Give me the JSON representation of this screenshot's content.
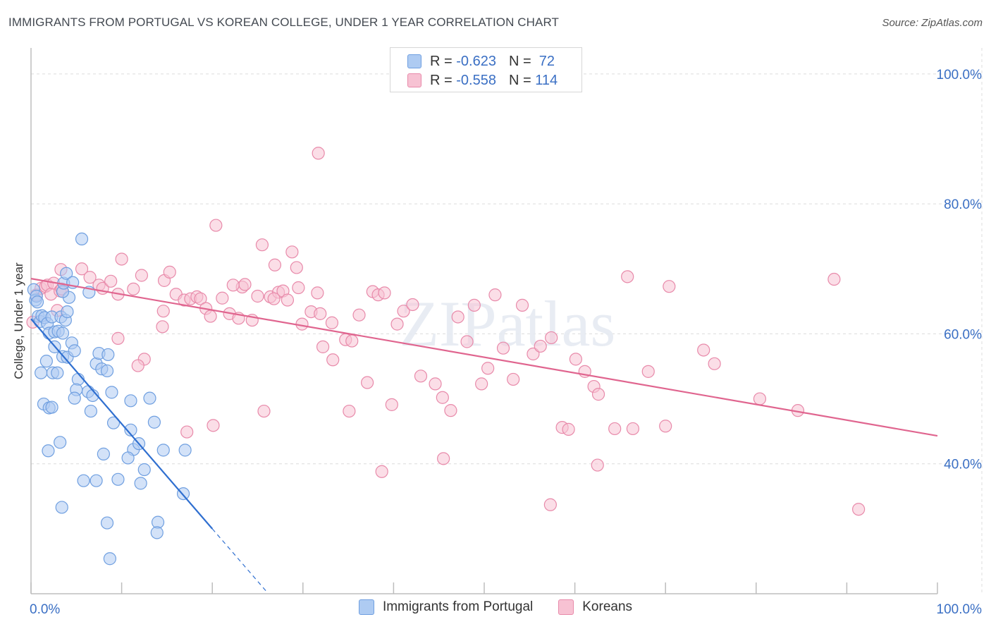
{
  "title": "IMMIGRANTS FROM PORTUGAL VS KOREAN COLLEGE, UNDER 1 YEAR CORRELATION CHART",
  "source": "Source: ZipAtlas.com",
  "watermark": "ZIPatlas",
  "legend": {
    "r_label": "R =",
    "n_label": "N =",
    "series1": {
      "r": "-0.623",
      "n": "72"
    },
    "series2": {
      "r": "-0.558",
      "n": "114"
    }
  },
  "colors": {
    "blue_fill": "#aecbf2",
    "blue_stroke": "#6f9fe0",
    "blue_line": "#2f6fd0",
    "pink_fill": "#f7c2d3",
    "pink_stroke": "#e88aaa",
    "pink_line": "#e0658f",
    "axis_text": "#3a6fc4"
  },
  "chart_data": {
    "type": "scatter",
    "title": "IMMIGRANTS FROM PORTUGAL VS KOREAN COLLEGE, UNDER 1 YEAR CORRELATION CHART",
    "xlabel": "",
    "ylabel": "College, Under 1 year",
    "xlim": [
      0,
      100
    ],
    "ylim": [
      20,
      104
    ],
    "x_tick_labels": [
      "0.0%",
      "100.0%"
    ],
    "y_ticks": [
      40,
      60,
      80,
      100
    ],
    "y_tick_labels": [
      "40.0%",
      "60.0%",
      "80.0%",
      "100.0%"
    ],
    "series": [
      {
        "name": "Immigrants from Portugal",
        "r": -0.623,
        "n": 72,
        "trend": {
          "x0": 0,
          "y0": 62.3,
          "x1": 20,
          "y1": 30.0,
          "dash_to_x": 26
        },
        "points": [
          [
            0.3,
            66.8
          ],
          [
            0.5,
            65.2
          ],
          [
            0.6,
            65.8
          ],
          [
            0.7,
            64.9
          ],
          [
            0.8,
            62.7
          ],
          [
            1.0,
            61.9
          ],
          [
            1.2,
            62.8
          ],
          [
            1.5,
            62.5
          ],
          [
            1.8,
            61.6
          ],
          [
            2.0,
            60.1
          ],
          [
            2.3,
            62.6
          ],
          [
            2.6,
            60.3
          ],
          [
            3.0,
            60.4
          ],
          [
            3.3,
            62.6
          ],
          [
            3.5,
            60.1
          ],
          [
            3.8,
            62.1
          ],
          [
            4.0,
            63.4
          ],
          [
            4.2,
            65.6
          ],
          [
            4.5,
            58.6
          ],
          [
            3.5,
            66.5
          ],
          [
            3.6,
            67.8
          ],
          [
            3.9,
            69.3
          ],
          [
            4.6,
            67.9
          ],
          [
            2.6,
            58.0
          ],
          [
            1.7,
            55.8
          ],
          [
            1.1,
            54.0
          ],
          [
            2.4,
            54.0
          ],
          [
            2.9,
            54.0
          ],
          [
            3.5,
            56.5
          ],
          [
            4.0,
            56.4
          ],
          [
            4.8,
            57.4
          ],
          [
            5.2,
            53.0
          ],
          [
            5.0,
            51.4
          ],
          [
            6.3,
            51.1
          ],
          [
            6.8,
            50.5
          ],
          [
            7.2,
            55.4
          ],
          [
            7.5,
            57.0
          ],
          [
            7.8,
            54.6
          ],
          [
            8.4,
            54.3
          ],
          [
            8.5,
            56.8
          ],
          [
            8.9,
            51.0
          ],
          [
            11.0,
            49.7
          ],
          [
            13.1,
            50.1
          ],
          [
            1.4,
            49.2
          ],
          [
            2.0,
            48.6
          ],
          [
            2.3,
            48.7
          ],
          [
            4.8,
            50.1
          ],
          [
            9.1,
            46.3
          ],
          [
            11.0,
            45.2
          ],
          [
            13.6,
            46.4
          ],
          [
            11.3,
            42.2
          ],
          [
            11.9,
            43.1
          ],
          [
            14.6,
            42.1
          ],
          [
            1.9,
            42.0
          ],
          [
            3.2,
            43.3
          ],
          [
            6.6,
            48.1
          ],
          [
            8.0,
            41.5
          ],
          [
            10.7,
            40.9
          ],
          [
            12.5,
            39.1
          ],
          [
            17.0,
            42.1
          ],
          [
            5.8,
            37.4
          ],
          [
            7.2,
            37.4
          ],
          [
            9.6,
            37.6
          ],
          [
            12.1,
            37.0
          ],
          [
            16.8,
            35.4
          ],
          [
            3.4,
            33.3
          ],
          [
            8.4,
            30.9
          ],
          [
            14.0,
            31.0
          ],
          [
            13.9,
            29.4
          ],
          [
            8.7,
            25.4
          ],
          [
            5.6,
            74.6
          ],
          [
            6.4,
            66.4
          ]
        ]
      },
      {
        "name": "Koreans",
        "r": -0.558,
        "n": 114,
        "trend": {
          "x0": 0,
          "y0": 68.5,
          "x1": 100,
          "y1": 44.3
        },
        "points": [
          [
            0.2,
            61.8
          ],
          [
            0.6,
            66.0
          ],
          [
            1.1,
            67.0
          ],
          [
            1.6,
            67.3
          ],
          [
            1.8,
            67.5
          ],
          [
            2.2,
            66.1
          ],
          [
            2.5,
            67.8
          ],
          [
            3.2,
            66.6
          ],
          [
            2.9,
            63.6
          ],
          [
            3.4,
            66.9
          ],
          [
            3.3,
            69.9
          ],
          [
            5.6,
            70.0
          ],
          [
            6.5,
            68.7
          ],
          [
            7.5,
            67.5
          ],
          [
            7.9,
            67.0
          ],
          [
            8.8,
            68.1
          ],
          [
            10.0,
            71.5
          ],
          [
            9.6,
            66.1
          ],
          [
            11.3,
            66.9
          ],
          [
            12.2,
            69.0
          ],
          [
            14.7,
            68.2
          ],
          [
            15.3,
            69.5
          ],
          [
            16.0,
            66.1
          ],
          [
            16.9,
            65.2
          ],
          [
            17.6,
            65.4
          ],
          [
            18.3,
            65.7
          ],
          [
            18.7,
            65.4
          ],
          [
            19.3,
            63.9
          ],
          [
            19.8,
            62.7
          ],
          [
            20.4,
            76.7
          ],
          [
            21.1,
            65.5
          ],
          [
            21.9,
            63.1
          ],
          [
            22.9,
            62.4
          ],
          [
            23.3,
            67.2
          ],
          [
            23.6,
            67.6
          ],
          [
            24.4,
            62.1
          ],
          [
            25.0,
            65.8
          ],
          [
            25.5,
            73.7
          ],
          [
            26.4,
            65.7
          ],
          [
            26.9,
            70.6
          ],
          [
            27.3,
            66.4
          ],
          [
            27.8,
            66.6
          ],
          [
            28.3,
            65.2
          ],
          [
            29.5,
            67.1
          ],
          [
            29.3,
            70.2
          ],
          [
            28.8,
            72.6
          ],
          [
            29.9,
            61.5
          ],
          [
            30.9,
            63.4
          ],
          [
            31.6,
            66.3
          ],
          [
            31.9,
            63.1
          ],
          [
            32.2,
            58.0
          ],
          [
            33.2,
            61.7
          ],
          [
            34.7,
            59.1
          ],
          [
            35.4,
            58.9
          ],
          [
            36.2,
            62.9
          ],
          [
            37.1,
            52.5
          ],
          [
            37.7,
            66.5
          ],
          [
            38.3,
            66.0
          ],
          [
            39.0,
            66.3
          ],
          [
            39.8,
            49.1
          ],
          [
            40.4,
            61.5
          ],
          [
            41.1,
            63.5
          ],
          [
            42.1,
            64.5
          ],
          [
            43.0,
            53.5
          ],
          [
            44.6,
            52.3
          ],
          [
            45.4,
            50.2
          ],
          [
            46.3,
            48.2
          ],
          [
            47.1,
            62.6
          ],
          [
            48.1,
            58.8
          ],
          [
            48.9,
            64.4
          ],
          [
            49.7,
            52.3
          ],
          [
            50.4,
            54.7
          ],
          [
            51.2,
            66.0
          ],
          [
            52.1,
            57.8
          ],
          [
            53.2,
            53.0
          ],
          [
            54.2,
            64.4
          ],
          [
            55.4,
            56.9
          ],
          [
            56.2,
            58.1
          ],
          [
            57.4,
            59.4
          ],
          [
            58.6,
            45.6
          ],
          [
            59.3,
            45.3
          ],
          [
            60.1,
            56.1
          ],
          [
            61.1,
            54.2
          ],
          [
            62.1,
            51.9
          ],
          [
            62.6,
            50.7
          ],
          [
            64.4,
            45.4
          ],
          [
            65.8,
            68.8
          ],
          [
            66.4,
            45.4
          ],
          [
            68.1,
            54.2
          ],
          [
            70.0,
            45.8
          ],
          [
            70.4,
            67.3
          ],
          [
            74.2,
            57.5
          ],
          [
            75.4,
            55.4
          ],
          [
            80.4,
            50.0
          ],
          [
            84.6,
            48.2
          ],
          [
            20.1,
            45.9
          ],
          [
            17.2,
            44.9
          ],
          [
            14.5,
            61.1
          ],
          [
            9.6,
            59.3
          ],
          [
            12.5,
            56.1
          ],
          [
            25.7,
            48.1
          ],
          [
            35.1,
            48.1
          ],
          [
            38.7,
            38.8
          ],
          [
            45.5,
            40.8
          ],
          [
            57.3,
            33.7
          ],
          [
            62.5,
            39.8
          ],
          [
            91.3,
            33.0
          ],
          [
            88.6,
            68.4
          ],
          [
            31.7,
            87.8
          ],
          [
            11.8,
            55.1
          ],
          [
            14.6,
            63.5
          ],
          [
            22.3,
            67.5
          ],
          [
            26.8,
            65.4
          ],
          [
            33.3,
            56.0
          ]
        ]
      }
    ]
  }
}
